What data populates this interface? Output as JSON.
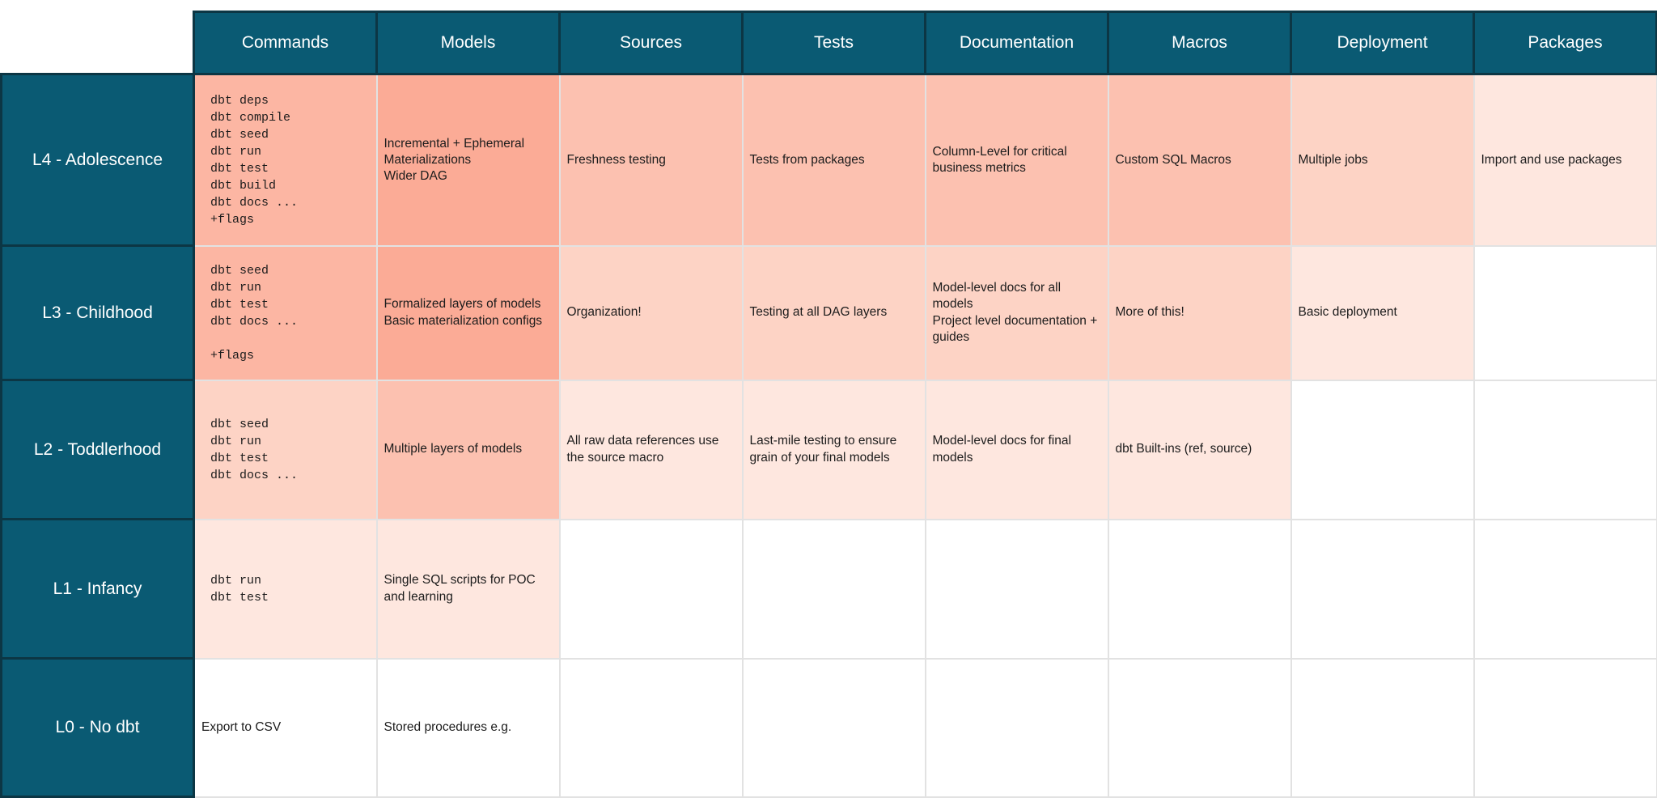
{
  "chart_data": {
    "type": "table",
    "description": "dbt maturity matrix heatmap: levels L0-L4 vs practice areas, cells shaded darker for more mature usage",
    "columns": [
      "Commands",
      "Models",
      "Sources",
      "Tests",
      "Documentation",
      "Macros",
      "Deployment",
      "Packages"
    ],
    "row_labels": [
      "L4 - Adolescence",
      "L3 - Childhood",
      "L2 - Toddlerhood",
      "L1 - Infancy",
      "L0 - No dbt"
    ],
    "shade_palette": [
      "#fbab96",
      "#fcb6a3",
      "#fcc1b0",
      "#fdd3c5",
      "#fee7df",
      "#ffffff"
    ],
    "rows": [
      {
        "label": "L4 - Adolescence",
        "cells": [
          {
            "lines": [
              "dbt deps",
              "dbt compile",
              "dbt seed",
              "dbt run",
              "dbt test",
              "dbt build",
              "dbt docs ...",
              "+flags"
            ],
            "mono": true,
            "shade": 1
          },
          {
            "lines": [
              "Incremental + Ephemeral Materializations",
              "Wider DAG"
            ],
            "mono": false,
            "shade": 0
          },
          {
            "lines": [
              "Freshness testing"
            ],
            "mono": false,
            "shade": 2
          },
          {
            "lines": [
              "Tests from packages"
            ],
            "mono": false,
            "shade": 2
          },
          {
            "lines": [
              "Column-Level for critical business metrics"
            ],
            "mono": false,
            "shade": 2
          },
          {
            "lines": [
              "Custom SQL Macros"
            ],
            "mono": false,
            "shade": 2
          },
          {
            "lines": [
              "Multiple jobs"
            ],
            "mono": false,
            "shade": 3
          },
          {
            "lines": [
              "Import and use packages"
            ],
            "mono": false,
            "shade": 4
          }
        ]
      },
      {
        "label": "L3 - Childhood",
        "cells": [
          {
            "lines": [
              "dbt seed",
              "dbt run",
              "dbt test",
              "dbt docs ...",
              "",
              "+flags"
            ],
            "mono": true,
            "shade": 1
          },
          {
            "lines": [
              "Formalized layers of models",
              "Basic materialization configs"
            ],
            "mono": false,
            "shade": 0
          },
          {
            "lines": [
              "Organization!"
            ],
            "mono": false,
            "shade": 3
          },
          {
            "lines": [
              "Testing at all DAG layers"
            ],
            "mono": false,
            "shade": 3
          },
          {
            "lines": [
              "Model-level docs for all models",
              "Project level documentation + guides"
            ],
            "mono": false,
            "shade": 3
          },
          {
            "lines": [
              "More of this!"
            ],
            "mono": false,
            "shade": 3
          },
          {
            "lines": [
              "Basic deployment"
            ],
            "mono": false,
            "shade": 4
          },
          {
            "lines": [],
            "mono": false,
            "shade": 5
          }
        ]
      },
      {
        "label": "L2 - Toddlerhood",
        "cells": [
          {
            "lines": [
              "dbt seed",
              "dbt run",
              "dbt test",
              "dbt docs ..."
            ],
            "mono": true,
            "shade": 3
          },
          {
            "lines": [
              "Multiple layers of models"
            ],
            "mono": false,
            "shade": 2
          },
          {
            "lines": [
              "All raw data references use the source macro"
            ],
            "mono": false,
            "shade": 4
          },
          {
            "lines": [
              "Last-mile testing to ensure grain of your final models"
            ],
            "mono": false,
            "shade": 4
          },
          {
            "lines": [
              "Model-level docs for final models"
            ],
            "mono": false,
            "shade": 4
          },
          {
            "lines": [
              "dbt Built-ins (ref, source)"
            ],
            "mono": false,
            "shade": 4
          },
          {
            "lines": [],
            "mono": false,
            "shade": 5
          },
          {
            "lines": [],
            "mono": false,
            "shade": 5
          }
        ]
      },
      {
        "label": "L1 - Infancy",
        "cells": [
          {
            "lines": [
              "dbt run",
              "dbt test"
            ],
            "mono": true,
            "shade": 4
          },
          {
            "lines": [
              "Single SQL scripts for POC and learning"
            ],
            "mono": false,
            "shade": 4
          },
          {
            "lines": [],
            "mono": false,
            "shade": 5
          },
          {
            "lines": [],
            "mono": false,
            "shade": 5
          },
          {
            "lines": [],
            "mono": false,
            "shade": 5
          },
          {
            "lines": [],
            "mono": false,
            "shade": 5
          },
          {
            "lines": [],
            "mono": false,
            "shade": 5
          },
          {
            "lines": [],
            "mono": false,
            "shade": 5
          }
        ]
      },
      {
        "label": "L0 - No dbt",
        "cells": [
          {
            "lines": [
              "Export to CSV"
            ],
            "mono": false,
            "shade": 5
          },
          {
            "lines": [
              "Stored procedures e.g."
            ],
            "mono": false,
            "shade": 5
          },
          {
            "lines": [],
            "mono": false,
            "shade": 5
          },
          {
            "lines": [],
            "mono": false,
            "shade": 5
          },
          {
            "lines": [],
            "mono": false,
            "shade": 5
          },
          {
            "lines": [],
            "mono": false,
            "shade": 5
          },
          {
            "lines": [],
            "mono": false,
            "shade": 5
          },
          {
            "lines": [],
            "mono": false,
            "shade": 5
          }
        ]
      }
    ],
    "colors": {
      "header_bg": "#0a5a73",
      "header_border": "#0c3644",
      "header_text": "#ffffff",
      "grid_line": "#e2e2e2",
      "cell_text": "#1c1c1c"
    },
    "legend_position": "none",
    "grid": true
  }
}
